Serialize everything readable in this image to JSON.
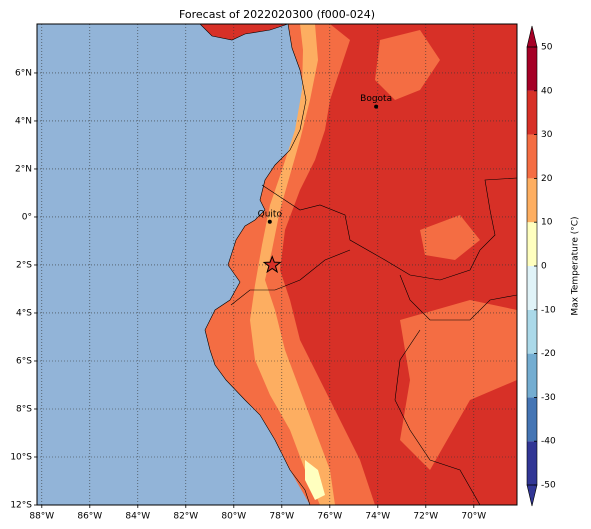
{
  "map": {
    "title": "Forecast of 2022020300 (f000-024)",
    "xlim": [
      -88.2,
      -68.2
    ],
    "ylim": [
      -12,
      8.04
    ],
    "xticks": [
      {
        "value": -88,
        "label": "88°W"
      },
      {
        "value": -86,
        "label": "86°W"
      },
      {
        "value": -84,
        "label": "84°W"
      },
      {
        "value": -82,
        "label": "82°W"
      },
      {
        "value": -80,
        "label": "80°W"
      },
      {
        "value": -78,
        "label": "78°W"
      },
      {
        "value": -76,
        "label": "76°W"
      },
      {
        "value": -74,
        "label": "74°W"
      },
      {
        "value": -72,
        "label": "72°W"
      },
      {
        "value": -70,
        "label": "70°W"
      }
    ],
    "yticks": [
      {
        "value": 6,
        "label": "6°N"
      },
      {
        "value": 4,
        "label": "4°N"
      },
      {
        "value": 2,
        "label": "2°N"
      },
      {
        "value": 0,
        "label": "0°"
      },
      {
        "value": -2,
        "label": "2°S"
      },
      {
        "value": -4,
        "label": "4°S"
      },
      {
        "value": -6,
        "label": "6°S"
      },
      {
        "value": -8,
        "label": "8°S"
      },
      {
        "value": -10,
        "label": "10°S"
      },
      {
        "value": -12,
        "label": "12°S"
      }
    ],
    "grid": true,
    "cities": [
      {
        "name": "Bogota",
        "lon": -74.07,
        "lat": 4.6
      },
      {
        "name": "Quito",
        "lon": -78.5,
        "lat": -0.2
      }
    ],
    "marker": {
      "lon": -78.4,
      "lat": -2.0,
      "color": "#d73027"
    }
  },
  "colorbar": {
    "label": "Max Temperature (°C)",
    "ticks": [
      -50,
      -40,
      -30,
      -20,
      -10,
      0,
      10,
      20,
      30,
      40,
      50
    ],
    "colors": [
      "#313695",
      "#4575b4",
      "#74add1",
      "#abd9e9",
      "#e0f3f8",
      "#ffffbf",
      "#fdae61",
      "#f46d43",
      "#d73027",
      "#a50026"
    ]
  }
}
